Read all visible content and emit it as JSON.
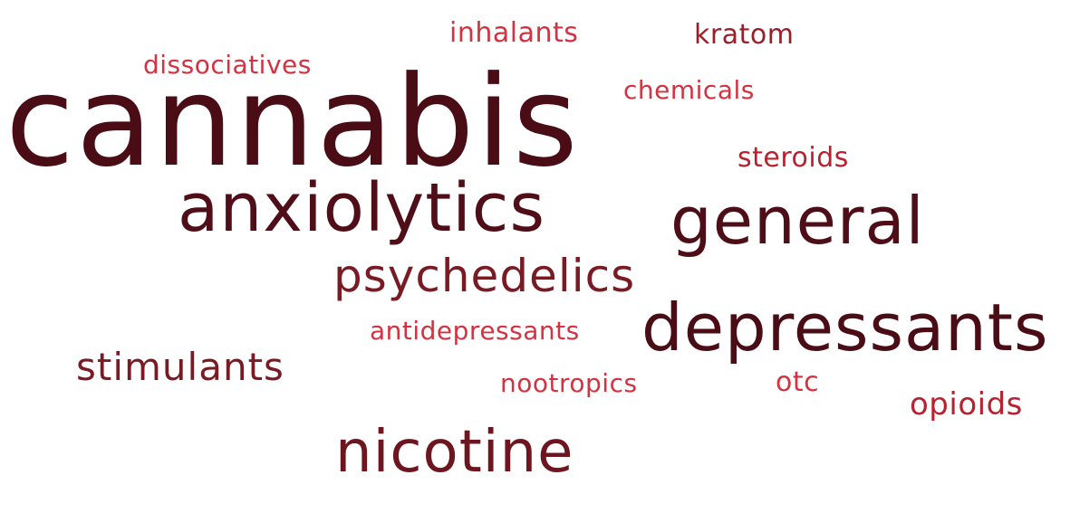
{
  "words": {
    "cannabis": {
      "text": "cannabis",
      "color": "#4a0d16"
    },
    "anxiolytics": {
      "text": "anxiolytics",
      "color": "#4f0e18"
    },
    "general": {
      "text": "general",
      "color": "#4d0e18"
    },
    "depressants": {
      "text": "depressants",
      "color": "#4a0d16"
    },
    "psychedelics": {
      "text": "psychedelics",
      "color": "#7a1a24"
    },
    "nicotine": {
      "text": "nicotine",
      "color": "#6e1620"
    },
    "stimulants": {
      "text": "stimulants",
      "color": "#7a1a24"
    },
    "inhalants": {
      "text": "inhalants",
      "color": "#d33241"
    },
    "kratom": {
      "text": "kratom",
      "color": "#9b1f2a"
    },
    "dissociatives": {
      "text": "dissociatives",
      "color": "#d33241"
    },
    "chemicals": {
      "text": "chemicals",
      "color": "#d33241"
    },
    "steroids": {
      "text": "steroids",
      "color": "#b7222e"
    },
    "antidepressants": {
      "text": "antidepressants",
      "color": "#d33241"
    },
    "nootropics": {
      "text": "nootropics",
      "color": "#d33241"
    },
    "otc": {
      "text": "otc",
      "color": "#d33241"
    },
    "opioids": {
      "text": "opioids",
      "color": "#b7222e"
    }
  }
}
